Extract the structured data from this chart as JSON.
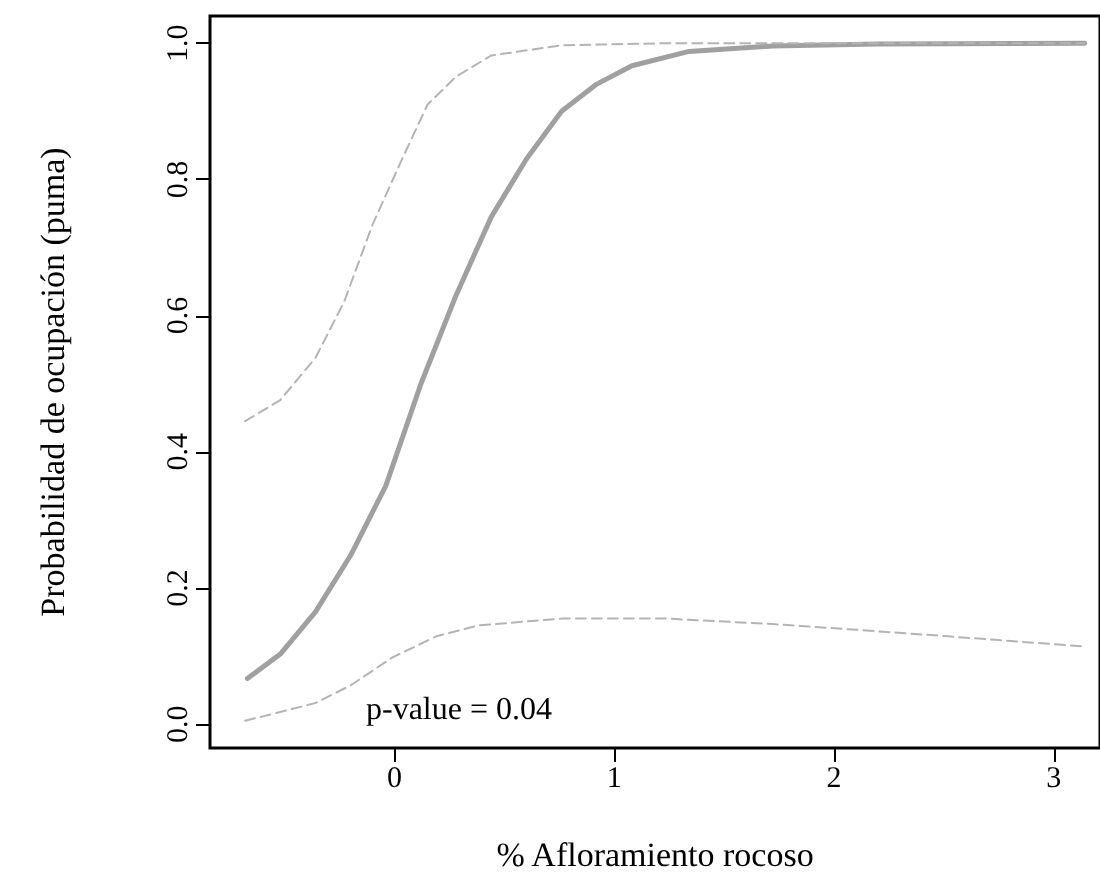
{
  "chart_data": {
    "type": "line",
    "xlabel": "% Afloramiento rocoso",
    "ylabel": "Probabilidad de ocupación (puma)",
    "annotations": [
      "p-value = 0.04"
    ],
    "xlim": [
      -0.84,
      3.21
    ],
    "xticks": [
      0,
      1,
      2,
      3
    ],
    "ylim": [
      -0.035,
      1.04
    ],
    "yticks": [
      {
        "value": 0,
        "label": "0.0"
      },
      {
        "value": 0.2,
        "label": "0.2"
      },
      {
        "value": 0.4,
        "label": "0.4"
      },
      {
        "value": 0.6,
        "label": "0.6"
      },
      {
        "value": 0.8,
        "label": "0.8"
      },
      {
        "value": 1,
        "label": "1.0"
      }
    ],
    "grid": false,
    "marker": "none",
    "series": [
      {
        "color": "#a0a0a0",
        "line_style": "solid",
        "x": [
          -0.67,
          -0.52,
          -0.36,
          -0.2,
          -0.04,
          0.12,
          0.28,
          0.44,
          0.6,
          0.76,
          0.92,
          1.08,
          1.34,
          1.72,
          2.2,
          3.14
        ],
        "values": [
          0.067,
          0.103,
          0.165,
          0.248,
          0.35,
          0.5,
          0.63,
          0.745,
          0.83,
          0.9,
          0.94,
          0.967,
          0.988,
          0.996,
          0.999,
          1.0
        ]
      },
      {
        "color": "#b4b4b4",
        "line_style": "dashed",
        "x": [
          -0.68,
          -0.52,
          -0.36,
          -0.23,
          -0.1,
          0.03,
          0.15,
          0.28,
          0.44,
          0.76,
          1.24,
          3.14
        ],
        "values": [
          0.445,
          0.476,
          0.538,
          0.62,
          0.734,
          0.827,
          0.91,
          0.951,
          0.982,
          0.997,
          1.0,
          1.0
        ]
      },
      {
        "color": "#b4b4b4",
        "line_style": "dashed",
        "x": [
          -0.68,
          -0.36,
          -0.2,
          -0.01,
          0.19,
          0.38,
          0.76,
          1.24,
          1.72,
          2.04,
          2.52,
          3.14
        ],
        "values": [
          0.005,
          0.031,
          0.057,
          0.098,
          0.129,
          0.145,
          0.155,
          0.155,
          0.147,
          0.14,
          0.129,
          0.114
        ]
      }
    ]
  }
}
